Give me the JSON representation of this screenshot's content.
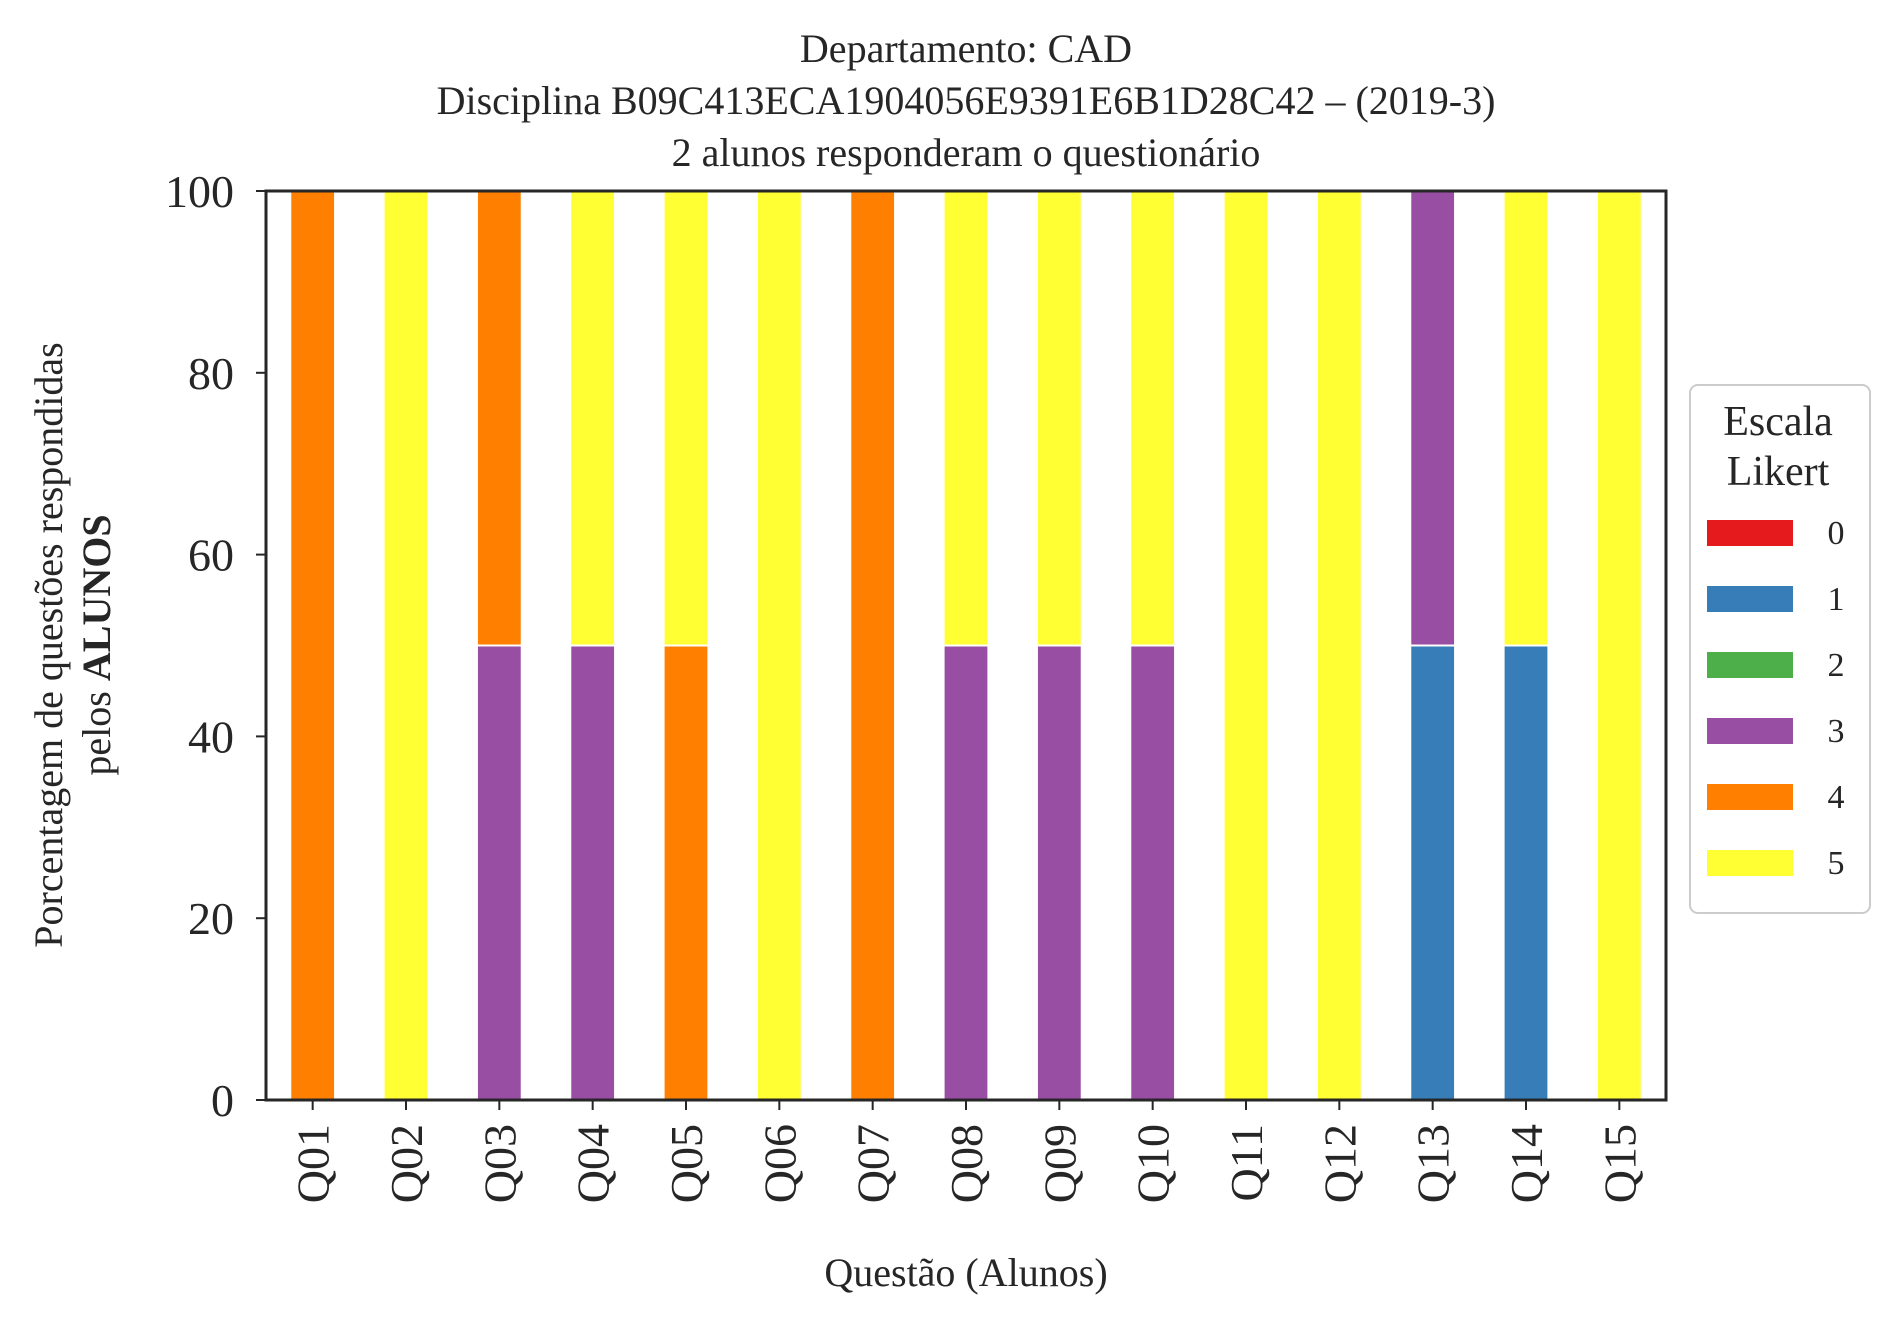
{
  "chart_data": {
    "type": "bar",
    "stacked": true,
    "title_lines": [
      "Departamento: CAD",
      "Disciplina B09C413ECA1904056E9391E6B1D28C42 – (2019-3)",
      "2 alunos responderam o questionário"
    ],
    "xlabel": "Questão (Alunos)",
    "ylabel_line1": "Porcentagem de questões respondidas",
    "ylabel_line2_prefix": "pelos ",
    "ylabel_line2_bold": "ALUNOS",
    "ylim": [
      0,
      100
    ],
    "yticks": [
      0,
      20,
      40,
      60,
      80,
      100
    ],
    "grid": false,
    "legend": {
      "title_lines": [
        "Escala",
        "Likert"
      ],
      "placement": "right",
      "entries": [
        "0",
        "1",
        "2",
        "3",
        "4",
        "5"
      ]
    },
    "categories": [
      "Q01",
      "Q02",
      "Q03",
      "Q04",
      "Q05",
      "Q06",
      "Q07",
      "Q08",
      "Q09",
      "Q10",
      "Q11",
      "Q12",
      "Q13",
      "Q14",
      "Q15"
    ],
    "series": [
      {
        "name": "0",
        "color": "#e41a1c",
        "values": [
          0,
          0,
          0,
          0,
          0,
          0,
          0,
          0,
          0,
          0,
          0,
          0,
          0,
          0,
          0
        ]
      },
      {
        "name": "1",
        "color": "#377eb8",
        "values": [
          0,
          0,
          0,
          0,
          0,
          0,
          0,
          0,
          0,
          0,
          0,
          0,
          50,
          50,
          0
        ]
      },
      {
        "name": "2",
        "color": "#4daf4a",
        "values": [
          0,
          0,
          0,
          0,
          0,
          0,
          0,
          0,
          0,
          0,
          0,
          0,
          0,
          0,
          0
        ]
      },
      {
        "name": "3",
        "color": "#984ea3",
        "values": [
          0,
          0,
          50,
          50,
          0,
          0,
          0,
          50,
          50,
          50,
          0,
          0,
          50,
          0,
          0
        ]
      },
      {
        "name": "4",
        "color": "#ff7f00",
        "values": [
          100,
          0,
          50,
          0,
          50,
          0,
          100,
          0,
          0,
          0,
          0,
          0,
          0,
          0,
          0
        ]
      },
      {
        "name": "5",
        "color": "#ffff33",
        "values": [
          0,
          100,
          0,
          50,
          50,
          100,
          0,
          50,
          50,
          50,
          100,
          100,
          0,
          50,
          100
        ]
      }
    ]
  }
}
